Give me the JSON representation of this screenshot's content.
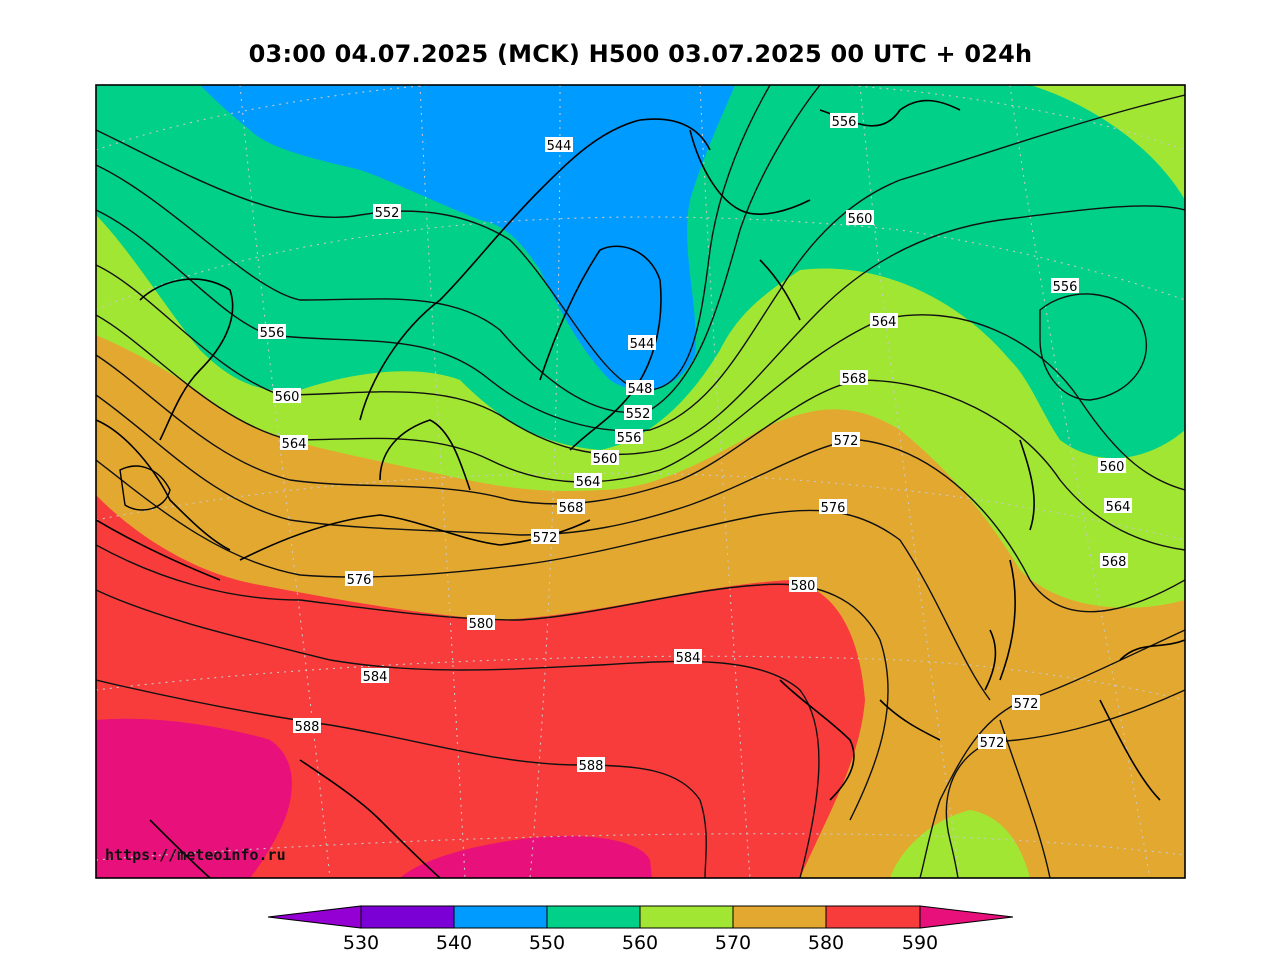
{
  "title": "03:00 04.07.2025 (MCK) H500  03.07.2025 00 UTC + 024h",
  "credit": "https://meteoinfo.ru",
  "legend": {
    "ticks": [
      "530",
      "540",
      "550",
      "560",
      "570",
      "580",
      "590"
    ],
    "colors": [
      "#9400D3",
      "#7B00D6",
      "#009BFF",
      "#00D088",
      "#A2E634",
      "#E3A830",
      "#F83C3C",
      "#E8107A"
    ]
  },
  "zones": {
    "below_540": "#7B00D6",
    "540_550": "#009BFF",
    "550_560": "#00D088",
    "560_570": "#A2E634",
    "570_580": "#E3A830",
    "580_590": "#F83C3C",
    "above_590": "#E8107A"
  },
  "contour_labels": [
    {
      "text": "544"
    },
    {
      "text": "552"
    },
    {
      "text": "556"
    },
    {
      "text": "556"
    },
    {
      "text": "560"
    },
    {
      "text": "560"
    },
    {
      "text": "564"
    },
    {
      "text": "564"
    },
    {
      "text": "544"
    },
    {
      "text": "568"
    },
    {
      "text": "548"
    },
    {
      "text": "552"
    },
    {
      "text": "556"
    },
    {
      "text": "572"
    },
    {
      "text": "560"
    },
    {
      "text": "556"
    },
    {
      "text": "564"
    },
    {
      "text": "568"
    },
    {
      "text": "576"
    },
    {
      "text": "572"
    },
    {
      "text": "560"
    },
    {
      "text": "564"
    },
    {
      "text": "568"
    },
    {
      "text": "576"
    },
    {
      "text": "580"
    },
    {
      "text": "580"
    },
    {
      "text": "584"
    },
    {
      "text": "584"
    },
    {
      "text": "588"
    },
    {
      "text": "572"
    },
    {
      "text": "572"
    },
    {
      "text": "588"
    }
  ]
}
